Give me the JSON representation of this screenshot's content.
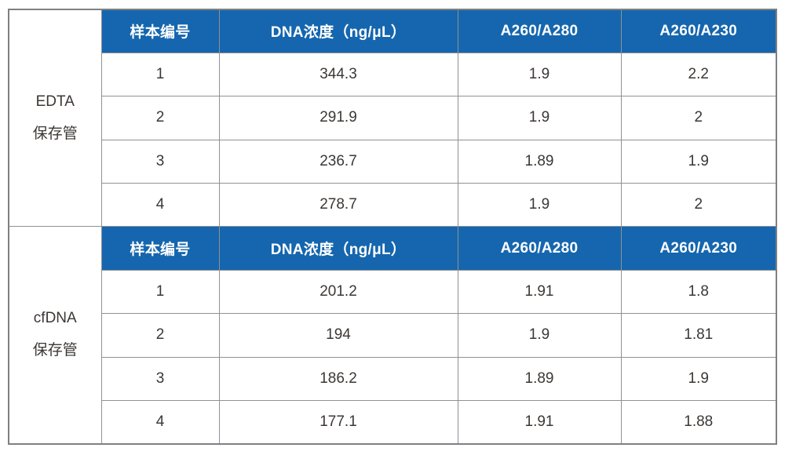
{
  "table": {
    "columns": {
      "sample_id": "样本编号",
      "dna_concentration": "DNA浓度（ng/μL）",
      "a260_a280": "A260/A280",
      "a260_a230": "A260/A230"
    },
    "sections": [
      {
        "group": {
          "line1": "EDTA",
          "line2": "保存管"
        },
        "rows": [
          {
            "sample": "1",
            "concentration": "344.3",
            "a260_a280": "1.9",
            "a260_a230": "2.2"
          },
          {
            "sample": "2",
            "concentration": "291.9",
            "a260_a280": "1.9",
            "a260_a230": "2"
          },
          {
            "sample": "3",
            "concentration": "236.7",
            "a260_a280": "1.89",
            "a260_a230": "1.9"
          },
          {
            "sample": "4",
            "concentration": "278.7",
            "a260_a280": "1.9",
            "a260_a230": "2"
          }
        ]
      },
      {
        "group": {
          "line1": "cfDNA",
          "line2": "保存管"
        },
        "rows": [
          {
            "sample": "1",
            "concentration": "201.2",
            "a260_a280": "1.91",
            "a260_a230": "1.8"
          },
          {
            "sample": "2",
            "concentration": "194",
            "a260_a280": "1.9",
            "a260_a230": "1.81"
          },
          {
            "sample": "3",
            "concentration": "186.2",
            "a260_a280": "1.89",
            "a260_a230": "1.9"
          },
          {
            "sample": "4",
            "concentration": "177.1",
            "a260_a280": "1.91",
            "a260_a230": "1.88"
          }
        ]
      }
    ],
    "colors": {
      "header_bg": "#1566AE",
      "header_text": "#FFFFFF",
      "body_text": "#3B3734",
      "grid_border": "#8F9194",
      "outer_border": "#7E8083",
      "background": "#FFFFFF"
    }
  }
}
